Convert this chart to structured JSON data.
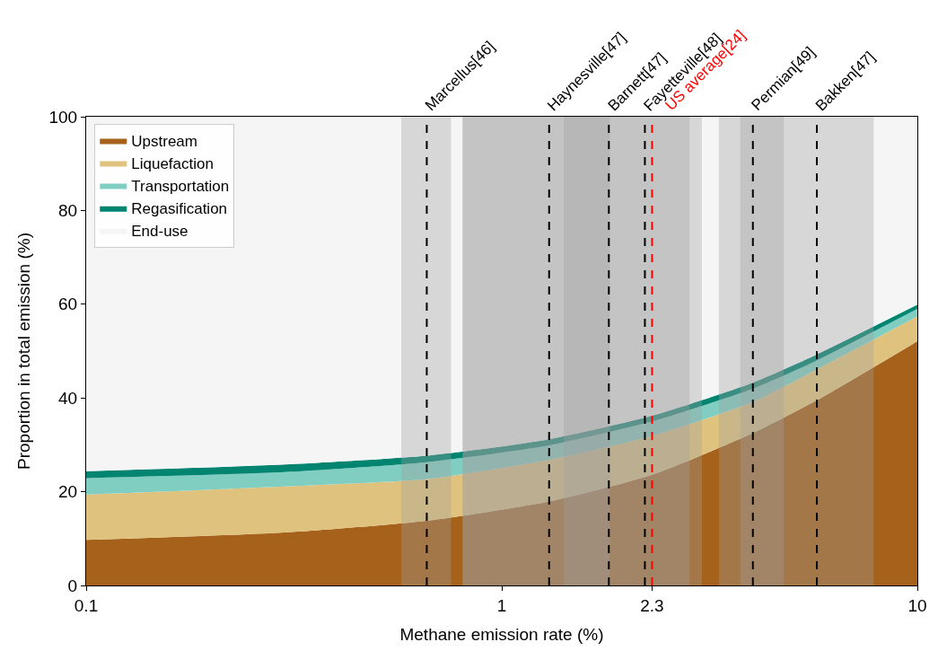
{
  "chart_data": {
    "type": "area",
    "stacked": true,
    "x": [
      0.1,
      0.3,
      0.66,
      1.3,
      2.3,
      4.0,
      5.7,
      10
    ],
    "series": [
      {
        "name": "Upstream",
        "color": "#a6611a",
        "values": [
          9.7,
          11.3,
          13.8,
          17.9,
          23.6,
          32.4,
          39.4,
          52.1
        ]
      },
      {
        "name": "Liquefaction",
        "color": "#dfc27d",
        "values": [
          9.7,
          9.8,
          8.9,
          8.9,
          8.3,
          6.7,
          6.6,
          5.3
        ]
      },
      {
        "name": "Transportation",
        "color": "#80cdc1",
        "values": [
          3.5,
          3.1,
          3.6,
          3.1,
          3.1,
          2.8,
          1.9,
          1.6
        ]
      },
      {
        "name": "Regasification",
        "color": "#018571",
        "values": [
          1.5,
          1.6,
          1.4,
          1.3,
          1.2,
          1.3,
          1.3,
          0.9
        ]
      },
      {
        "name": "End-use",
        "color": "#f5f5f5",
        "values": [
          75.6,
          74.2,
          72.3,
          68.8,
          63.8,
          56.8,
          50.8,
          40.1
        ]
      }
    ],
    "xlabel": "Methane emission rate (%)",
    "ylabel": "Proportion in total emission (%)",
    "log": "x",
    "xlim": [
      0.1,
      10
    ],
    "xticks": [
      0.1,
      1,
      2.3,
      10
    ],
    "ylim": [
      0,
      100
    ],
    "yticks": [
      0,
      20,
      40,
      60,
      80,
      100
    ],
    "legend": "top left",
    "bands": [
      {
        "axis": "x",
        "from": 0.573,
        "to": 0.755,
        "color": "#a0a0a0"
      },
      {
        "axis": "x",
        "from": 0.805,
        "to": 3.03,
        "color": "#a0a0a0"
      },
      {
        "axis": "x",
        "from": 0.805,
        "to": 2.83,
        "color": "#a0a0a0"
      },
      {
        "axis": "x",
        "from": 1.41,
        "to": 1.82,
        "color": "#a0a0a0"
      },
      {
        "axis": "x",
        "from": 3.33,
        "to": 7.85,
        "color": "#a0a0a0"
      },
      {
        "axis": "x",
        "from": 3.75,
        "to": 4.77,
        "color": "#a0a0a0"
      }
    ],
    "ref_lines": [
      {
        "axis": "x",
        "value": 0.66,
        "label": "Marcellus[46]",
        "color": "#000000",
        "line_style": "dashed"
      },
      {
        "axis": "x",
        "value": 1.3,
        "label": "Haynesville[47]",
        "color": "#000000",
        "line_style": "dashed"
      },
      {
        "axis": "x",
        "value": 1.81,
        "label": "Barnett[47]",
        "color": "#000000",
        "line_style": "dashed"
      },
      {
        "axis": "x",
        "value": 2.21,
        "label": "Fayetteville[48]",
        "color": "#000000",
        "line_style": "dashed"
      },
      {
        "axis": "x",
        "value": 2.3,
        "label": "US average[24]",
        "color": "#ff0000",
        "line_style": "dashed"
      },
      {
        "axis": "x",
        "value": 4.02,
        "label": "Permian[49]",
        "color": "#000000",
        "line_style": "dashed"
      },
      {
        "axis": "x",
        "value": 5.73,
        "label": "Bakken[47]",
        "color": "#000000",
        "line_style": "dashed"
      }
    ]
  }
}
